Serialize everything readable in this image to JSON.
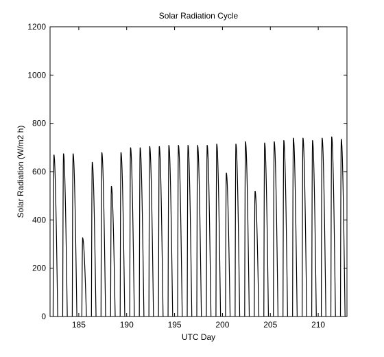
{
  "chart_data": {
    "type": "line",
    "title": "Solar Radiation Cycle",
    "xlabel": "UTC Day",
    "ylabel": "Solar Radiation (W/m2 h)",
    "xlim": [
      182,
      213
    ],
    "ylim": [
      0,
      1200
    ],
    "xticks": [
      185,
      190,
      195,
      200,
      205,
      210
    ],
    "yticks": [
      0,
      200,
      400,
      600,
      800,
      1000,
      1200
    ],
    "grid": false,
    "legend": "none",
    "series": [
      {
        "color": "#000000",
        "daily_peaks": [
          {
            "day": 182,
            "peak": 670
          },
          {
            "day": 183,
            "peak": 675
          },
          {
            "day": 184,
            "peak": 675
          },
          {
            "day": 185,
            "peak": 325
          },
          {
            "day": 186,
            "peak": 640
          },
          {
            "day": 187,
            "peak": 680
          },
          {
            "day": 188,
            "peak": 540
          },
          {
            "day": 189,
            "peak": 680
          },
          {
            "day": 190,
            "peak": 700
          },
          {
            "day": 191,
            "peak": 700
          },
          {
            "day": 192,
            "peak": 705
          },
          {
            "day": 193,
            "peak": 705
          },
          {
            "day": 194,
            "peak": 710
          },
          {
            "day": 195,
            "peak": 710
          },
          {
            "day": 196,
            "peak": 710
          },
          {
            "day": 197,
            "peak": 710
          },
          {
            "day": 198,
            "peak": 710
          },
          {
            "day": 199,
            "peak": 715
          },
          {
            "day": 200,
            "peak": 595
          },
          {
            "day": 201,
            "peak": 715
          },
          {
            "day": 202,
            "peak": 725
          },
          {
            "day": 203,
            "peak": 520
          },
          {
            "day": 204,
            "peak": 720
          },
          {
            "day": 205,
            "peak": 725
          },
          {
            "day": 206,
            "peak": 730
          },
          {
            "day": 207,
            "peak": 740
          },
          {
            "day": 208,
            "peak": 740
          },
          {
            "day": 209,
            "peak": 730
          },
          {
            "day": 210,
            "peak": 740
          },
          {
            "day": 211,
            "peak": 745
          },
          {
            "day": 212,
            "peak": 735
          }
        ]
      }
    ]
  }
}
